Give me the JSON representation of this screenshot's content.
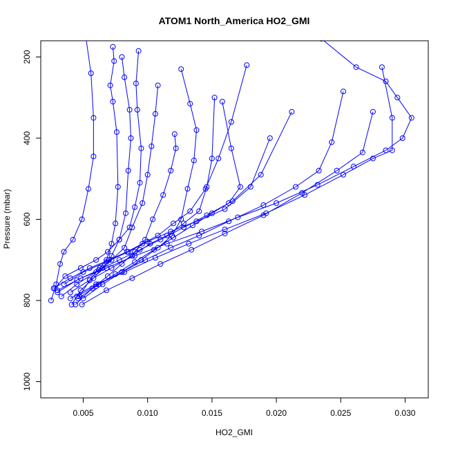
{
  "chart_data": {
    "type": "line",
    "title": "ATOM1 North_America HO2_GMI",
    "xlabel": "HO2_GMI",
    "ylabel": "Pressure (mbar)",
    "xlim": [
      0.0017,
      0.0318
    ],
    "ylim": [
      1040,
      160
    ],
    "y_reversed": true,
    "x_ticks": [
      0.005,
      0.01,
      0.015,
      0.02,
      0.025,
      0.03
    ],
    "x_tick_labels": [
      "0.005",
      "0.010",
      "0.015",
      "0.020",
      "0.025",
      "0.030"
    ],
    "y_ticks": [
      200,
      400,
      600,
      800,
      1000
    ],
    "y_tick_labels": [
      "200",
      "400",
      "600",
      "800",
      "1000"
    ],
    "grid": false,
    "marker": "open-circle",
    "color": "#0000ff",
    "series": [
      {
        "x": [
          0.0025,
          0.0029,
          0.0032,
          0.0035,
          0.0042,
          0.0049,
          0.0054,
          0.0058,
          0.0058,
          0.0056,
          0.0052,
          0.0045
        ],
        "y": [
          800,
          760,
          710,
          680,
          650,
          600,
          525,
          445,
          350,
          240,
          150,
          100
        ]
      },
      {
        "x": [
          0.0047,
          0.0055,
          0.0063,
          0.0068,
          0.0072,
          0.0075,
          0.0077,
          0.0076,
          0.0073,
          0.0071,
          0.0074,
          0.0073
        ],
        "y": [
          790,
          750,
          720,
          700,
          660,
          610,
          520,
          385,
          310,
          270,
          210,
          175
        ]
      },
      {
        "x": [
          0.0041,
          0.0048,
          0.0058,
          0.0065,
          0.0072,
          0.0078,
          0.0083,
          0.0085,
          0.0087,
          0.0086,
          0.0082,
          0.008
        ],
        "y": [
          810,
          775,
          745,
          720,
          690,
          650,
          585,
          480,
          400,
          330,
          250,
          200
        ]
      },
      {
        "x": [
          0.0028,
          0.0036,
          0.0048,
          0.006,
          0.0069,
          0.0078,
          0.0086,
          0.009,
          0.0094,
          0.0095,
          0.0092,
          0.0091,
          0.0093
        ],
        "y": [
          770,
          740,
          720,
          700,
          680,
          650,
          620,
          570,
          510,
          425,
          330,
          265,
          185
        ]
      },
      {
        "x": [
          0.0033,
          0.0045,
          0.006,
          0.0072,
          0.0082,
          0.0088,
          0.0096,
          0.01,
          0.0103,
          0.0106,
          0.0108
        ],
        "y": [
          790,
          760,
          730,
          700,
          670,
          620,
          560,
          490,
          420,
          340,
          270
        ]
      },
      {
        "x": [
          0.0044,
          0.0057,
          0.0069,
          0.008,
          0.009,
          0.0098,
          0.0104,
          0.0112,
          0.0118,
          0.0122,
          0.0121
        ],
        "y": [
          810,
          770,
          740,
          710,
          680,
          650,
          600,
          540,
          480,
          425,
          390
        ]
      },
      {
        "x": [
          0.005,
          0.0065,
          0.008,
          0.0095,
          0.0108,
          0.0119,
          0.0126,
          0.0131,
          0.0136,
          0.0138,
          0.0133,
          0.0126
        ],
        "y": [
          795,
          760,
          730,
          700,
          670,
          640,
          600,
          525,
          455,
          380,
          315,
          230
        ]
      },
      {
        "x": [
          0.004,
          0.0055,
          0.0072,
          0.0088,
          0.0102,
          0.0115,
          0.0128,
          0.014,
          0.0146,
          0.015,
          0.0152
        ],
        "y": [
          780,
          750,
          720,
          690,
          660,
          640,
          610,
          580,
          520,
          450,
          300
        ]
      },
      {
        "x": [
          0.0027,
          0.004,
          0.0055,
          0.007,
          0.0084,
          0.0096,
          0.0108,
          0.012,
          0.0133,
          0.0145,
          0.0155,
          0.0165,
          0.0177
        ],
        "y": [
          770,
          745,
          720,
          700,
          680,
          660,
          640,
          610,
          580,
          525,
          450,
          360,
          220
        ]
      },
      {
        "x": [
          0.0046,
          0.006,
          0.0075,
          0.009,
          0.0105,
          0.012,
          0.0135,
          0.015,
          0.0163,
          0.0172,
          0.0165,
          0.0158
        ],
        "y": [
          795,
          765,
          735,
          705,
          675,
          645,
          615,
          585,
          560,
          520,
          425,
          310
        ]
      },
      {
        "x": [
          0.003,
          0.0045,
          0.0062,
          0.0078,
          0.0094,
          0.011,
          0.0128,
          0.0146,
          0.0166,
          0.0188,
          0.0212
        ],
        "y": [
          780,
          750,
          725,
          700,
          675,
          650,
          620,
          590,
          555,
          490,
          335
        ]
      },
      {
        "x": [
          0.0035,
          0.005,
          0.0068,
          0.0085,
          0.01,
          0.0118,
          0.0138,
          0.016,
          0.018,
          0.0195
        ],
        "y": [
          760,
          730,
          705,
          680,
          655,
          630,
          605,
          575,
          520,
          400
        ]
      },
      {
        "x": [
          0.0045,
          0.0062,
          0.008,
          0.0098,
          0.0118,
          0.014,
          0.0163,
          0.019,
          0.0215,
          0.0233,
          0.0243,
          0.0252
        ],
        "y": [
          790,
          760,
          730,
          700,
          670,
          640,
          605,
          565,
          520,
          480,
          410,
          285
        ]
      },
      {
        "x": [
          0.0049,
          0.0068,
          0.0088,
          0.011,
          0.0134,
          0.016,
          0.019,
          0.022,
          0.0247,
          0.0267,
          0.0275
        ],
        "y": [
          810,
          775,
          745,
          710,
          675,
          635,
          590,
          535,
          480,
          435,
          335
        ]
      },
      {
        "x": [
          0.003,
          0.0048,
          0.0068,
          0.009,
          0.0115,
          0.0142,
          0.017,
          0.02,
          0.0232,
          0.026,
          0.0285,
          0.0298,
          0.0305,
          0.0294,
          0.0285,
          0.0262,
          0.0235
        ],
        "y": [
          775,
          745,
          720,
          690,
          660,
          630,
          595,
          560,
          515,
          470,
          430,
          400,
          350,
          300,
          260,
          225,
          155
        ]
      },
      {
        "x": [
          0.004,
          0.006,
          0.0082,
          0.0106,
          0.0132,
          0.016,
          0.0192,
          0.0222,
          0.0252,
          0.0275,
          0.029,
          0.029,
          0.0282
        ],
        "y": [
          795,
          760,
          730,
          695,
          660,
          625,
          585,
          540,
          490,
          450,
          430,
          350,
          225
        ]
      }
    ]
  }
}
